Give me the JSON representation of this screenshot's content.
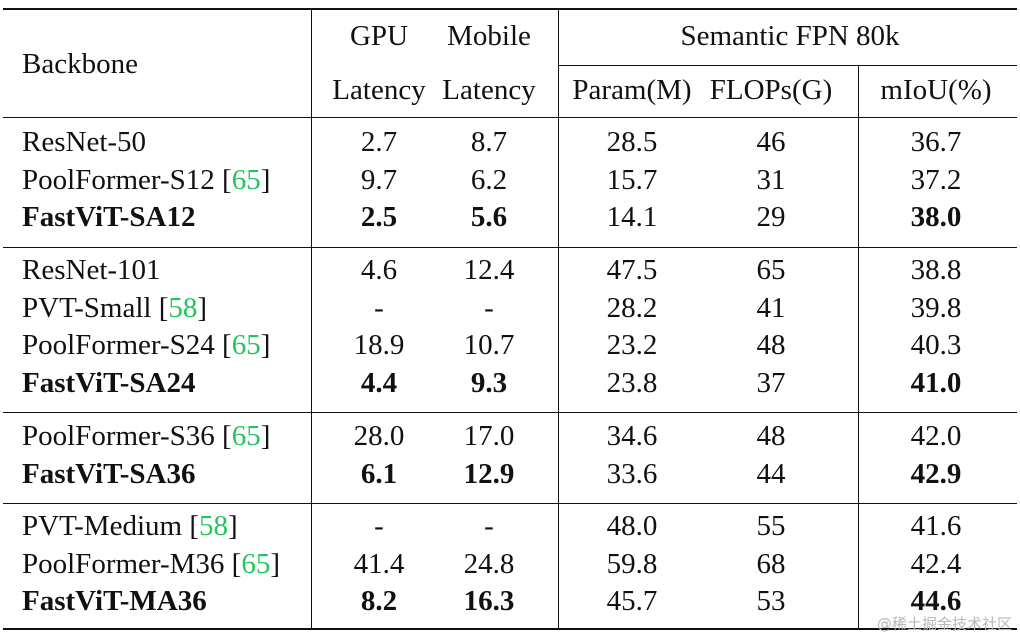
{
  "header": {
    "backbone": "Backbone",
    "gpu": "GPU",
    "mobile": "Mobile",
    "latency_gpu": "Latency",
    "latency_mobile": "Latency",
    "semantic": "Semantic FPN 80k",
    "param": "Param(M)",
    "flops": "FLOPs(G)",
    "miou": "mIoU(%)"
  },
  "groups": [
    {
      "rows": [
        {
          "name": "ResNet-50",
          "cite": "",
          "gpu": "2.7",
          "mobile": "8.7",
          "param": "28.5",
          "flops": "46",
          "miou": "36.7",
          "bold_name": false,
          "bold_gpu": false,
          "bold_mobile": false,
          "bold_miou": false
        },
        {
          "name": "PoolFormer-S12 ",
          "cite": "65",
          "gpu": "9.7",
          "mobile": "6.2",
          "param": "15.7",
          "flops": "31",
          "miou": "37.2",
          "bold_name": false,
          "bold_gpu": false,
          "bold_mobile": false,
          "bold_miou": false
        },
        {
          "name": "FastViT-SA12",
          "cite": "",
          "gpu": "2.5",
          "mobile": "5.6",
          "param": "14.1",
          "flops": "29",
          "miou": "38.0",
          "bold_name": true,
          "bold_gpu": true,
          "bold_mobile": true,
          "bold_miou": true
        }
      ]
    },
    {
      "rows": [
        {
          "name": "ResNet-101",
          "cite": "",
          "gpu": "4.6",
          "mobile": "12.4",
          "param": "47.5",
          "flops": "65",
          "miou": "38.8",
          "bold_name": false,
          "bold_gpu": false,
          "bold_mobile": false,
          "bold_miou": false
        },
        {
          "name": "PVT-Small ",
          "cite": "58",
          "gpu": "-",
          "mobile": "-",
          "param": "28.2",
          "flops": "41",
          "miou": "39.8",
          "bold_name": false,
          "bold_gpu": false,
          "bold_mobile": false,
          "bold_miou": false
        },
        {
          "name": "PoolFormer-S24 ",
          "cite": "65",
          "gpu": "18.9",
          "mobile": "10.7",
          "param": "23.2",
          "flops": "48",
          "miou": "40.3",
          "bold_name": false,
          "bold_gpu": false,
          "bold_mobile": false,
          "bold_miou": false
        },
        {
          "name": "FastViT-SA24",
          "cite": "",
          "gpu": "4.4",
          "mobile": "9.3",
          "param": "23.8",
          "flops": "37",
          "miou": "41.0",
          "bold_name": true,
          "bold_gpu": true,
          "bold_mobile": true,
          "bold_miou": true
        }
      ]
    },
    {
      "rows": [
        {
          "name": "PoolFormer-S36 ",
          "cite": "65",
          "gpu": "28.0",
          "mobile": "17.0",
          "param": "34.6",
          "flops": "48",
          "miou": "42.0",
          "bold_name": false,
          "bold_gpu": false,
          "bold_mobile": false,
          "bold_miou": false
        },
        {
          "name": "FastViT-SA36",
          "cite": "",
          "gpu": "6.1",
          "mobile": "12.9",
          "param": "33.6",
          "flops": "44",
          "miou": "42.9",
          "bold_name": true,
          "bold_gpu": true,
          "bold_mobile": true,
          "bold_miou": true
        }
      ]
    },
    {
      "rows": [
        {
          "name": "PVT-Medium ",
          "cite": "58",
          "gpu": "-",
          "mobile": "-",
          "param": "48.0",
          "flops": "55",
          "miou": "41.6",
          "bold_name": false,
          "bold_gpu": false,
          "bold_mobile": false,
          "bold_miou": false
        },
        {
          "name": "PoolFormer-M36 ",
          "cite": "65",
          "gpu": "41.4",
          "mobile": "24.8",
          "param": "59.8",
          "flops": "68",
          "miou": "42.4",
          "bold_name": false,
          "bold_gpu": false,
          "bold_mobile": false,
          "bold_miou": false
        },
        {
          "name": "FastViT-MA36",
          "cite": "",
          "gpu": "8.2",
          "mobile": "16.3",
          "param": "45.7",
          "flops": "53",
          "miou": "44.6",
          "bold_name": true,
          "bold_gpu": true,
          "bold_mobile": true,
          "bold_miou": true
        }
      ]
    }
  ],
  "watermark": "@稀土掘金技术社区",
  "colors": {
    "citation": "#22c55e",
    "rule": "#111111"
  }
}
